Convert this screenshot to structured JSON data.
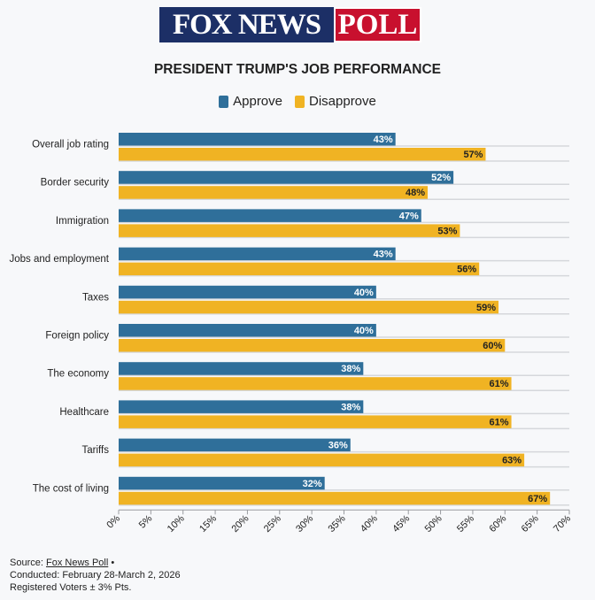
{
  "header": {
    "logo_fox": "FOX NEWS",
    "logo_poll": "POLL"
  },
  "chart_data": {
    "type": "bar",
    "orientation": "horizontal",
    "title": "PRESIDENT TRUMP'S JOB PERFORMANCE",
    "categories": [
      "Overall job rating",
      "Border security",
      "Immigration",
      "Jobs and employment",
      "Taxes",
      "Foreign policy",
      "The economy",
      "Healthcare",
      "Tariffs",
      "The cost of living"
    ],
    "series": [
      {
        "name": "Approve",
        "color": "#2f6f9a",
        "values": [
          43,
          52,
          47,
          43,
          40,
          40,
          38,
          38,
          36,
          32
        ]
      },
      {
        "name": "Disapprove",
        "color": "#f0b323",
        "values": [
          57,
          48,
          53,
          56,
          59,
          60,
          61,
          61,
          63,
          67
        ]
      }
    ],
    "xlim": [
      0,
      70
    ],
    "xticks": [
      0,
      5,
      10,
      15,
      20,
      25,
      30,
      35,
      40,
      45,
      50,
      55,
      60,
      65,
      70
    ],
    "tick_suffix": "%",
    "legend_position": "top-center"
  },
  "footer": {
    "source_label": "Source:",
    "source_link": "Fox News Poll",
    "source_bullet": "•",
    "conducted": "Conducted: February 28-March 2, 2026",
    "sample": "Registered Voters ± 3% Pts."
  }
}
